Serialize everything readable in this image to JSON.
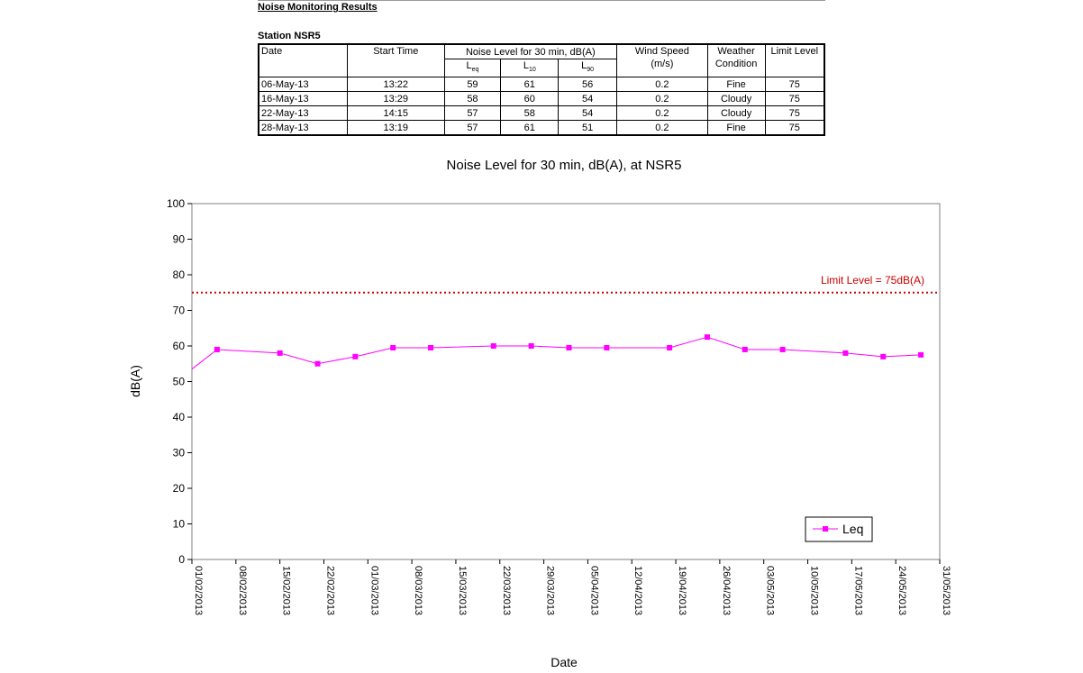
{
  "report": {
    "heading": "Noise Monitoring Results",
    "station": "Station NSR5",
    "headers": {
      "date": "Date",
      "start_time": "Start Time",
      "noise_group": "Noise Level for 30 min, dB(A)",
      "leq": "L",
      "leq_sub": "eq",
      "l10": "L",
      "l10_sub": "10",
      "l90": "L",
      "l90_sub": "90",
      "wind_speed": "Wind Speed",
      "wind_unit": "(m/s)",
      "weather": "Weather",
      "weather2": "Condition",
      "limit": "Limit Level"
    },
    "rows": [
      {
        "date": "06-May-13",
        "start": "13:22",
        "leq": "59",
        "l10": "61",
        "l90": "56",
        "wind": "0.2",
        "weather": "Fine",
        "limit": "75"
      },
      {
        "date": "16-May-13",
        "start": "13:29",
        "leq": "58",
        "l10": "60",
        "l90": "54",
        "wind": "0.2",
        "weather": "Cloudy",
        "limit": "75"
      },
      {
        "date": "22-May-13",
        "start": "14:15",
        "leq": "57",
        "l10": "58",
        "l90": "54",
        "wind": "0.2",
        "weather": "Cloudy",
        "limit": "75"
      },
      {
        "date": "28-May-13",
        "start": "13:19",
        "leq": "57",
        "l10": "61",
        "l90": "51",
        "wind": "0.2",
        "weather": "Fine",
        "limit": "75"
      }
    ]
  },
  "chart_data": {
    "type": "line",
    "title": "Noise Level for 30 min, dB(A), at NSR5",
    "xlabel": "Date",
    "ylabel": "dB(A)",
    "xlim": [
      "01/02/2013",
      "31/05/2013"
    ],
    "ylim": [
      0,
      100
    ],
    "y_ticks": [
      0,
      10,
      20,
      30,
      40,
      50,
      60,
      70,
      80,
      90,
      100
    ],
    "x_ticks": [
      "01/02/2013",
      "08/02/2013",
      "15/02/2013",
      "22/02/2013",
      "01/03/2013",
      "08/03/2013",
      "15/03/2013",
      "22/03/2013",
      "29/03/2013",
      "05/04/2013",
      "12/04/2013",
      "19/04/2013",
      "26/04/2013",
      "03/05/2013",
      "10/05/2013",
      "17/05/2013",
      "24/05/2013",
      "31/05/2013"
    ],
    "grid": false,
    "legend_position": "bottom-right",
    "series": [
      {
        "name": "Leq",
        "color": "#ff00ff",
        "marker": "square",
        "enters_from": {
          "date": "01/02/2013",
          "y": 53.5
        },
        "points": [
          {
            "x": "05/02/2013",
            "y": 59
          },
          {
            "x": "15/02/2013",
            "y": 58
          },
          {
            "x": "21/02/2013",
            "y": 55
          },
          {
            "x": "27/02/2013",
            "y": 57
          },
          {
            "x": "05/03/2013",
            "y": 59.5
          },
          {
            "x": "11/03/2013",
            "y": 59.5
          },
          {
            "x": "21/03/2013",
            "y": 60
          },
          {
            "x": "27/03/2013",
            "y": 60
          },
          {
            "x": "02/04/2013",
            "y": 59.5
          },
          {
            "x": "08/04/2013",
            "y": 59.5
          },
          {
            "x": "18/04/2013",
            "y": 59.5
          },
          {
            "x": "24/04/2013",
            "y": 62.5
          },
          {
            "x": "30/04/2013",
            "y": 59
          },
          {
            "x": "06/05/2013",
            "y": 59
          },
          {
            "x": "16/05/2013",
            "y": 58
          },
          {
            "x": "22/05/2013",
            "y": 57
          },
          {
            "x": "28/05/2013",
            "y": 57.5
          }
        ]
      }
    ],
    "reference_line": {
      "label": "Limit Level = 75dB(A)",
      "y": 75,
      "color": "#cc0000",
      "style": "dotted"
    }
  }
}
